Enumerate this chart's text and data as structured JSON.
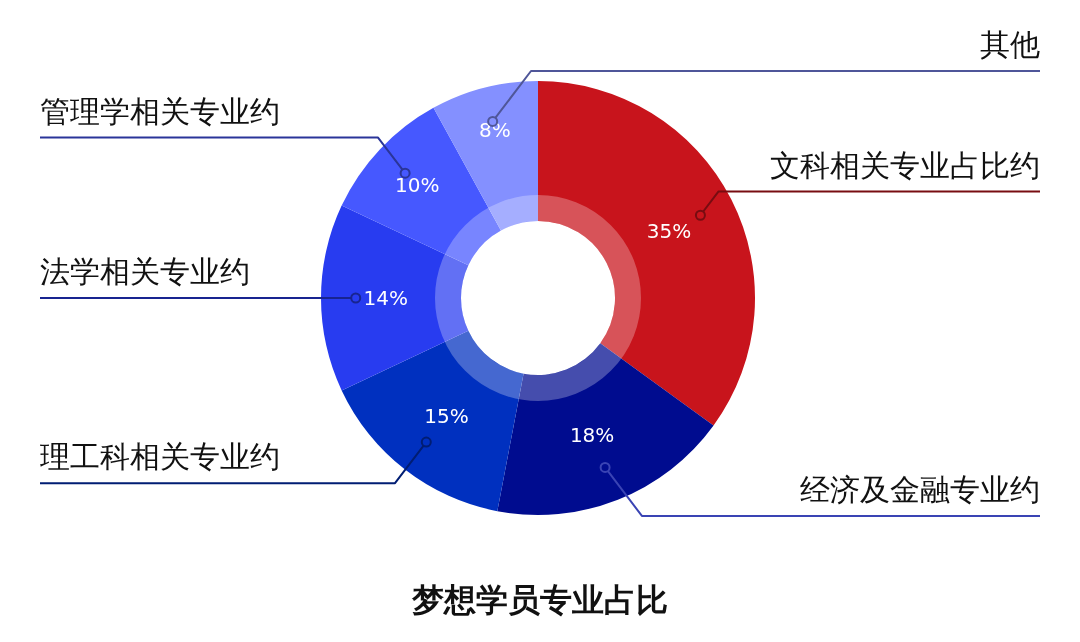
{
  "chart_data": {
    "type": "donut",
    "title": "梦想学员专业占比",
    "categories": [
      "文科相关专业占比约",
      "经济及金融专业约",
      "理工科相关专业约",
      "法学相关专业约",
      "管理学相关专业约",
      "其他"
    ],
    "values": [
      35,
      18,
      15,
      14,
      10,
      8
    ],
    "value_labels": [
      "35%",
      "18%",
      "15%",
      "14%",
      "10%",
      "8%"
    ],
    "colors": [
      "#c8141c",
      "#000c8f",
      "#0030bf",
      "#283cf0",
      "#4658ff",
      "#8490ff"
    ]
  }
}
